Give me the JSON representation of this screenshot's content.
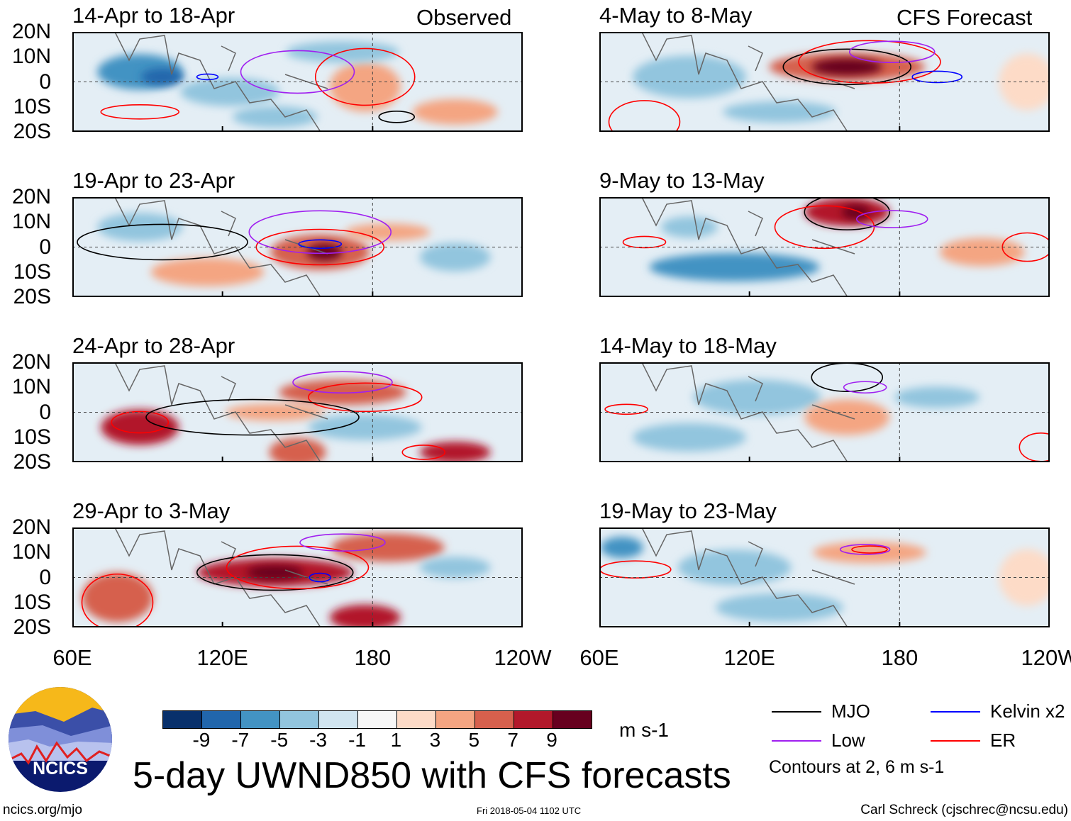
{
  "figure_title": "5-day UWND850 with CFS forecasts",
  "observed_label": "Observed",
  "forecast_label": "CFS Forecast",
  "panels_observed": [
    "14-Apr to 18-Apr",
    "19-Apr to 23-Apr",
    "24-Apr to 28-Apr",
    "29-Apr to 3-May"
  ],
  "panels_forecast": [
    "4-May to 8-May",
    "9-May to 13-May",
    "14-May to 18-May",
    "19-May to 23-May"
  ],
  "lat_labels": [
    "20N",
    "10N",
    "0",
    "10S",
    "20S"
  ],
  "lon_labels": [
    "60E",
    "120E",
    "180",
    "120W"
  ],
  "colorbar": {
    "unit": "m s-1",
    "ticks": [
      "-9",
      "-7",
      "-5",
      "-3",
      "-1",
      "1",
      "3",
      "5",
      "7",
      "9"
    ],
    "colors": [
      "#08306b",
      "#2166ac",
      "#4393c3",
      "#92c5de",
      "#d1e5f0",
      "#f7f7f7",
      "#fddbc7",
      "#f4a582",
      "#d6604d",
      "#b2182b",
      "#67001f"
    ]
  },
  "legend": {
    "items": [
      {
        "label": "MJO",
        "color": "#000000"
      },
      {
        "label": "Kelvin x2",
        "color": "#0000ff"
      },
      {
        "label": "Low",
        "color": "#a020f0"
      },
      {
        "label": "ER",
        "color": "#ff0000"
      }
    ],
    "note": "Contours at 2, 6 m s-1"
  },
  "logo_text": "NCICS",
  "footer": {
    "left": "ncics.org/mjo",
    "center": "Fri 2018-05-04 1102 UTC",
    "right": "Carl Schreck (cjschrec@ncsu.edu)"
  }
}
